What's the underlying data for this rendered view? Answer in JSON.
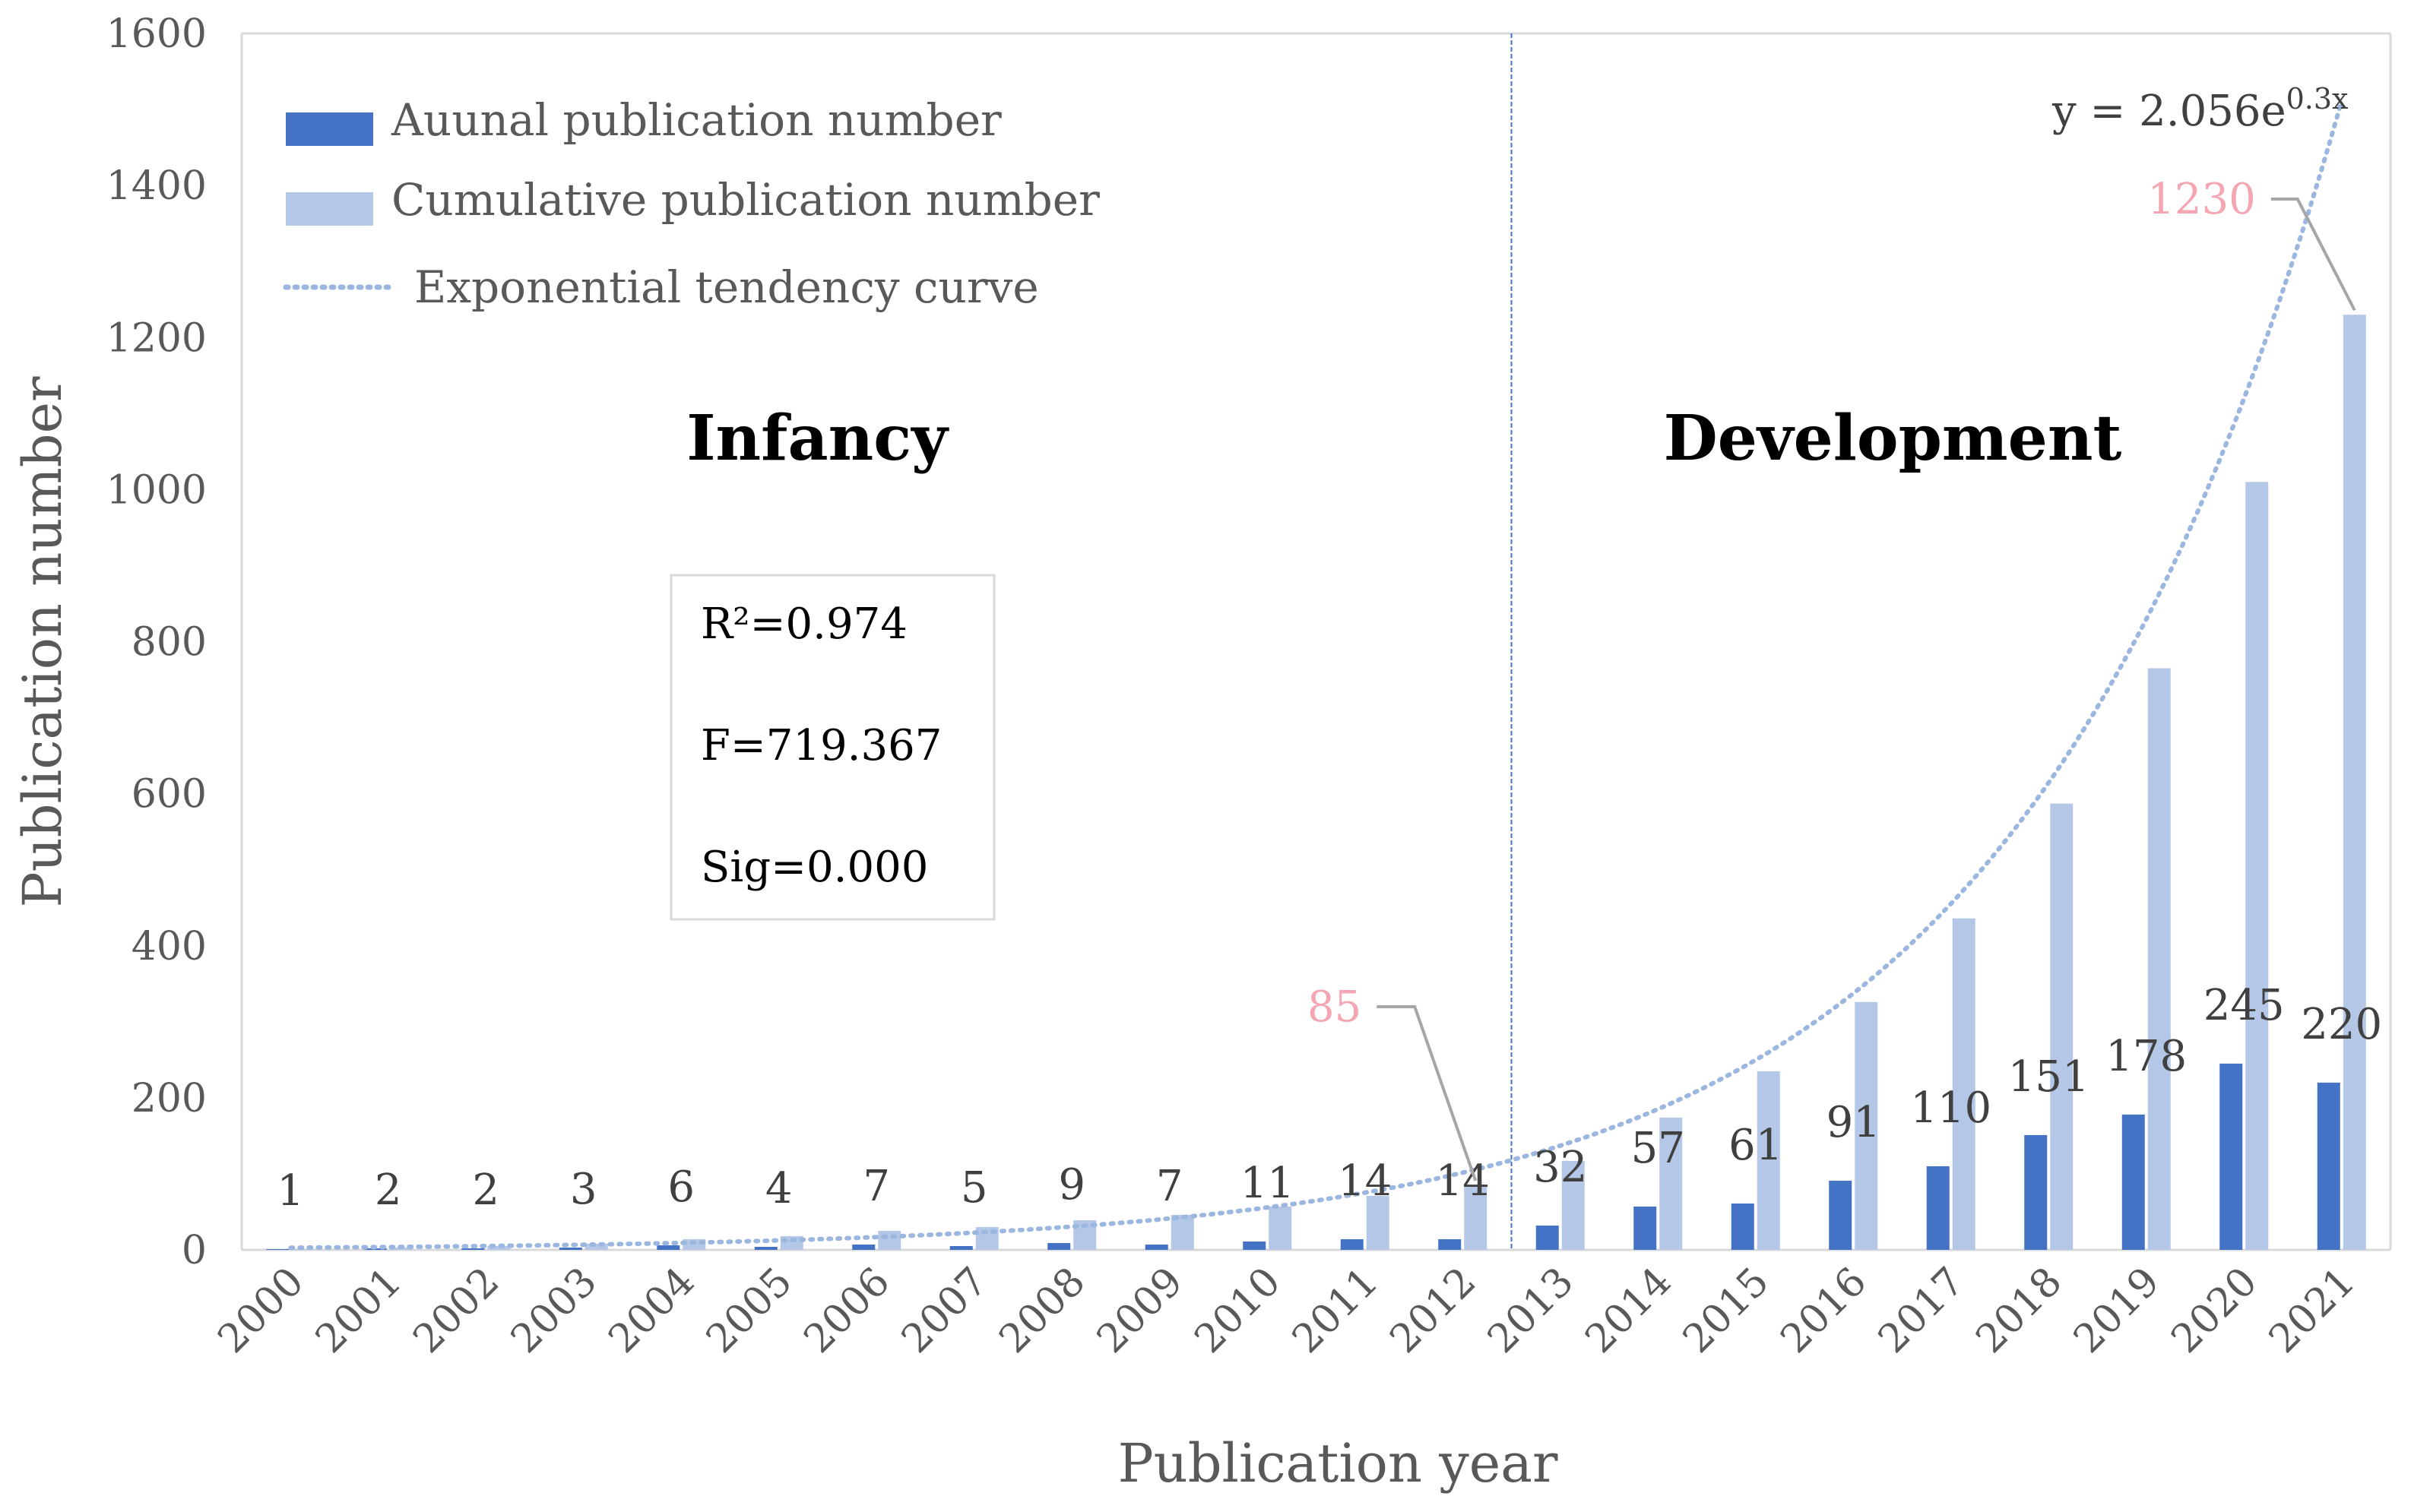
{
  "chart_data": {
    "type": "bar",
    "xlabel": "Publication year",
    "ylabel": "Publication number",
    "ylim": [
      0,
      1600
    ],
    "yticks": [
      0,
      200,
      400,
      600,
      800,
      1000,
      1200,
      1400,
      1600
    ],
    "categories": [
      "2000",
      "2001",
      "2002",
      "2003",
      "2004",
      "2005",
      "2006",
      "2007",
      "2008",
      "2009",
      "2010",
      "2011",
      "2012",
      "2013",
      "2014",
      "2015",
      "2016",
      "2017",
      "2018",
      "2019",
      "2020",
      "2021"
    ],
    "series": [
      {
        "name": "Auunal publication number",
        "color": "#4472c4",
        "values": [
          1,
          2,
          2,
          3,
          6,
          4,
          7,
          5,
          9,
          7,
          11,
          14,
          14,
          32,
          57,
          61,
          91,
          110,
          151,
          178,
          245,
          220
        ]
      },
      {
        "name": "Cumulative publication number",
        "color": "#b4c7e7",
        "values": [
          1,
          3,
          5,
          8,
          14,
          18,
          25,
          30,
          39,
          46,
          57,
          71,
          85,
          117,
          174,
          235,
          326,
          436,
          587,
          765,
          1010,
          1230
        ]
      },
      {
        "name": "Exponential tendency curve",
        "color": "#9bb7e0",
        "type": "line",
        "style": "dotted",
        "equation_base": "y = 2.056e",
        "equation_exp": "0.3x",
        "a": 2.056,
        "b": 0.3
      }
    ],
    "data_labels": [
      "1",
      "2",
      "2",
      "3",
      "6",
      "4",
      "7",
      "5",
      "9",
      "7",
      "11",
      "14",
      "14",
      "32",
      "57",
      "61",
      "91",
      "110",
      "151",
      "178",
      "245",
      "220"
    ],
    "callouts": [
      {
        "label": "85",
        "category": "2012",
        "value": 85
      },
      {
        "label": "1230",
        "category": "2021",
        "value": 1230
      }
    ],
    "phases": [
      {
        "label": "Infancy"
      },
      {
        "label": "Development"
      }
    ],
    "phase_divider_after": "2012",
    "stats": [
      "R²=0.974",
      "F=719.367",
      "Sig=0.000"
    ]
  }
}
